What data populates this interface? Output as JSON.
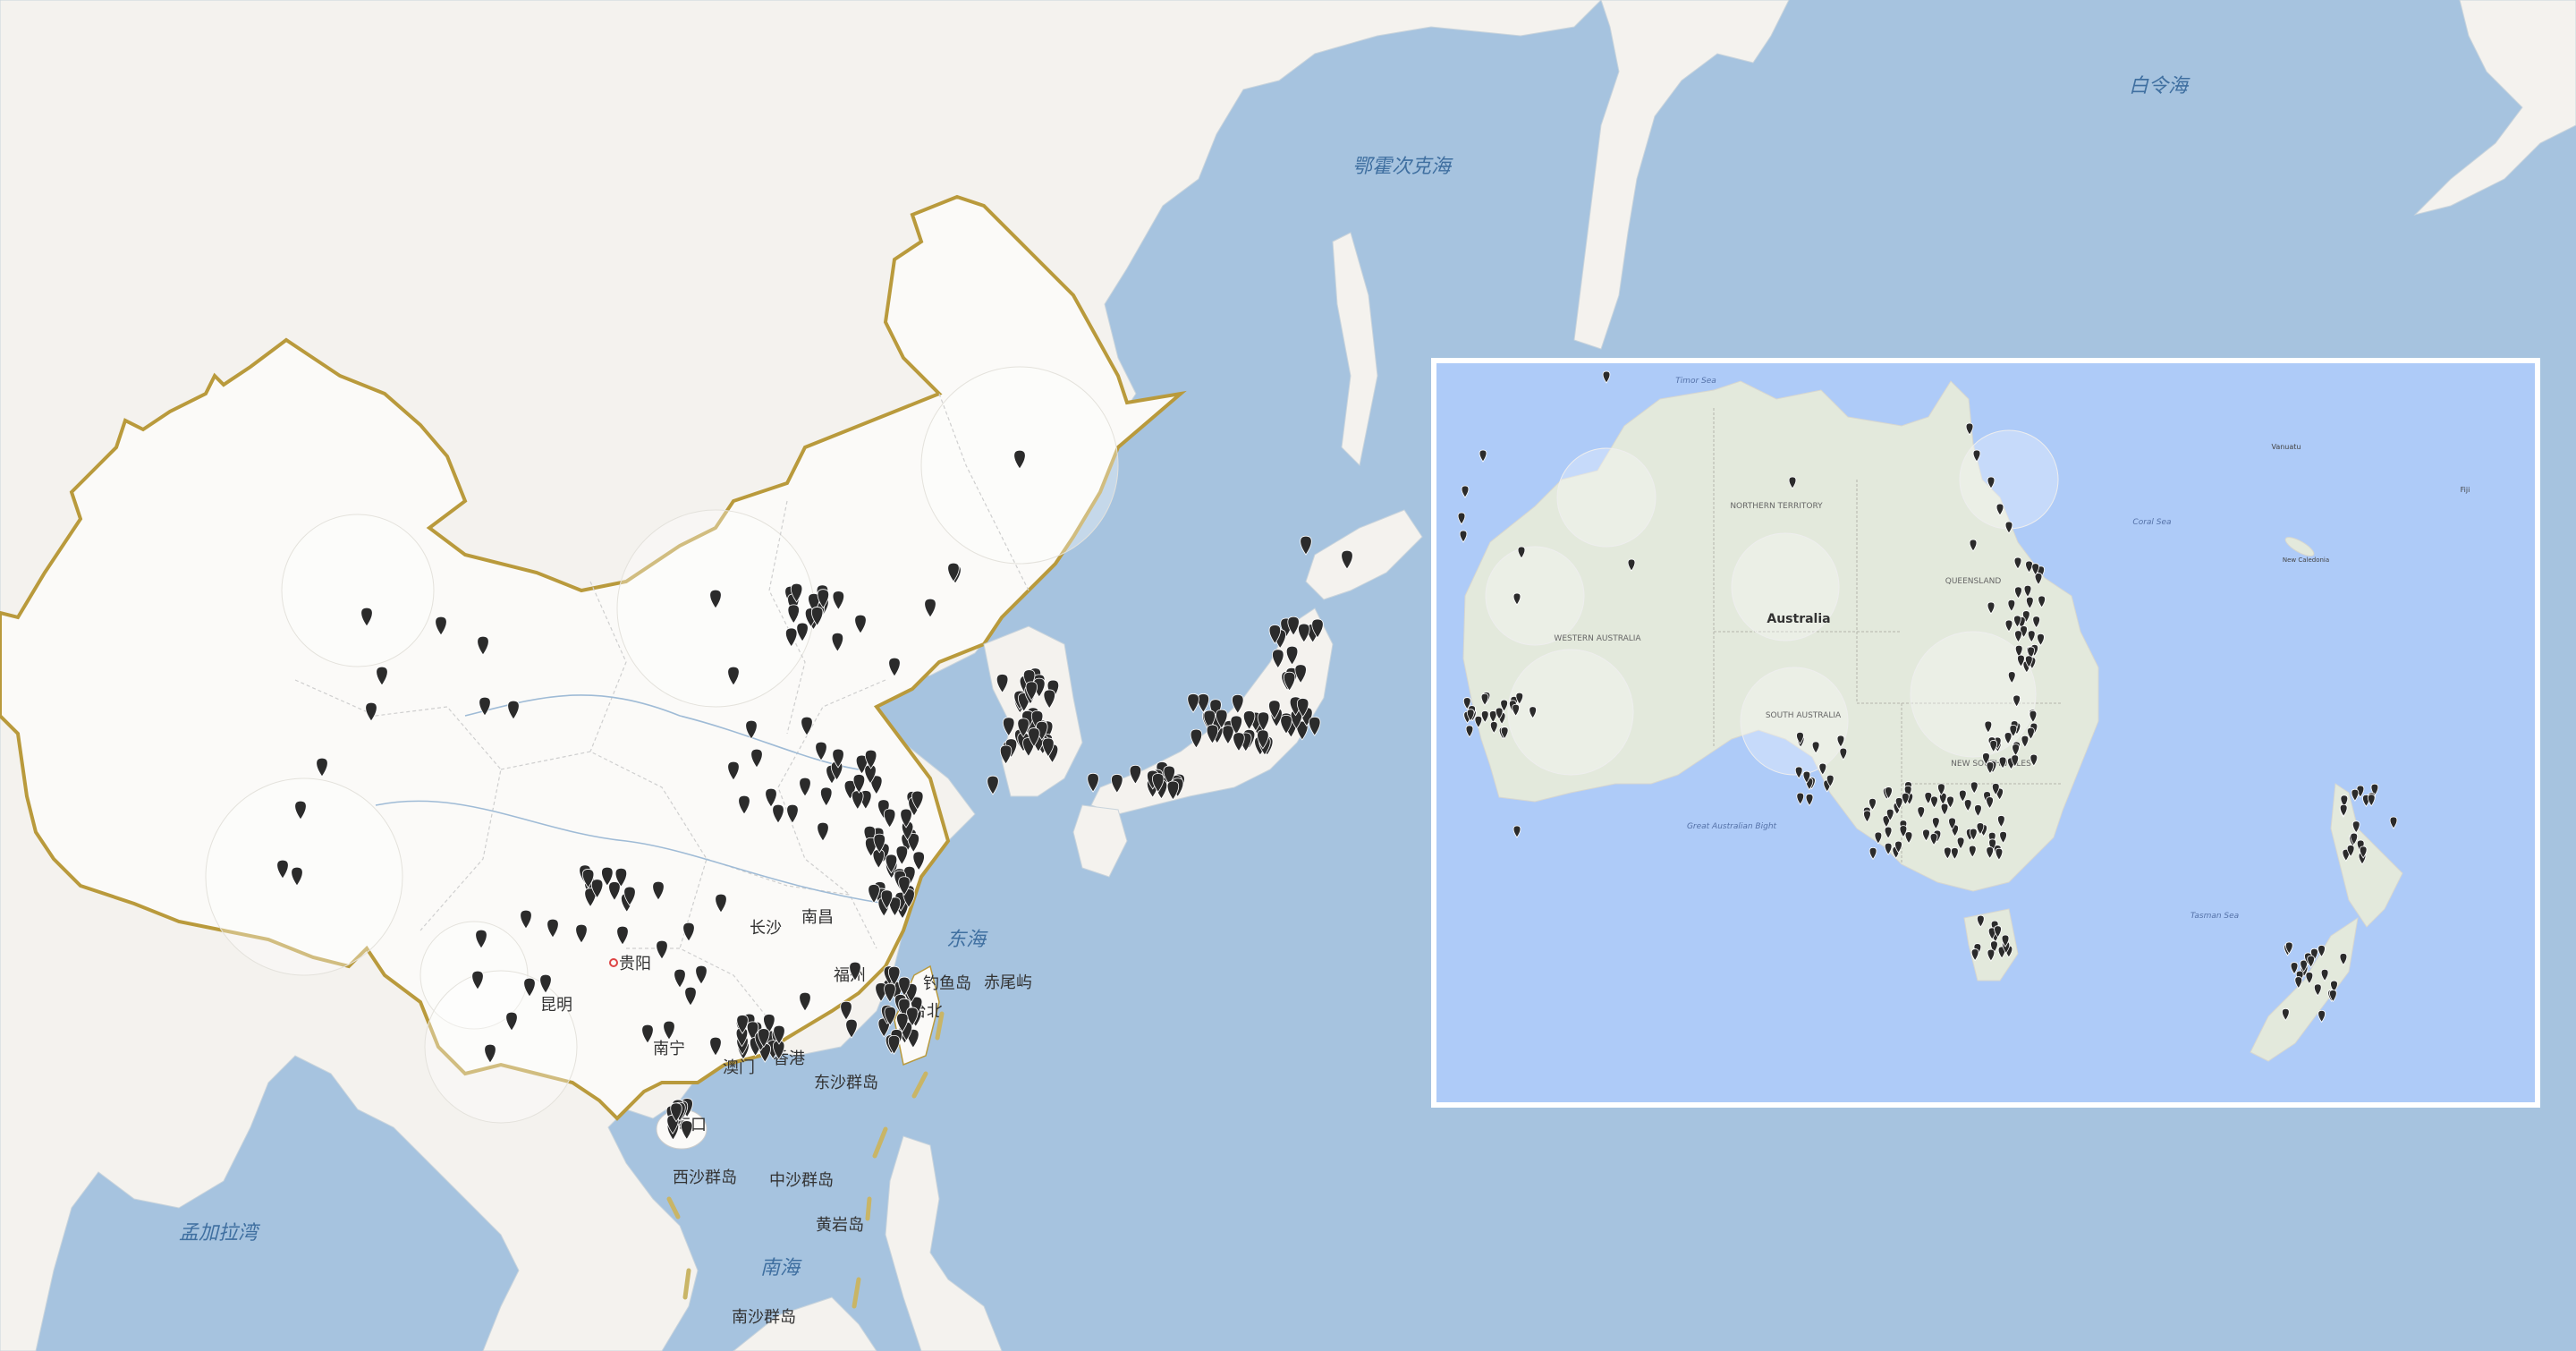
{
  "map": {
    "main_region": "East Asia",
    "seas": {
      "okhotsk": "鄂霍次克海",
      "bering": "白令海",
      "east_china_sea": "东海",
      "south_china_sea": "南海",
      "bay_of_bengal": "孟加拉湾"
    },
    "cities": {
      "guiyang": "贵阳",
      "kunming": "昆明",
      "nanchang": "南昌",
      "changsha": "长沙",
      "fuzhou": "福州",
      "hongkong": "香港",
      "nanning": "南宁",
      "macau": "澳门",
      "haikou": "海口",
      "taipei": "台北"
    },
    "islands": {
      "diaoyu": "钓鱼岛",
      "chiwei": "赤尾屿",
      "dongsha": "东沙群岛",
      "xisha": "西沙群岛",
      "zhongsha": "中沙群岛",
      "huangyan": "黄岩岛",
      "nansha": "南沙群岛"
    }
  },
  "inset": {
    "title": "Australia",
    "states": {
      "nt": "NORTHERN TERRITORY",
      "wa": "WESTERN AUSTRALIA",
      "qld": "QUEENSLAND",
      "sa": "SOUTH AUSTRALIA",
      "nsw": "NEW SOUTH WALES"
    },
    "seas": {
      "timor": "Timor Sea",
      "coral": "Coral Sea",
      "bight": "Great Australian Bight",
      "tasman": "Tasman Sea"
    },
    "places": {
      "vanuatu": "Vanuatu",
      "fiji": "Fiji",
      "new_caledonia": "New Caledonia"
    }
  },
  "colors": {
    "ocean": "#a6c3df",
    "land": "#f4f2ee",
    "china_land": "#fbfaf8",
    "border": "#b99a3c",
    "inset_ocean": "#aecbf8",
    "marker": "#2b2b2b"
  }
}
